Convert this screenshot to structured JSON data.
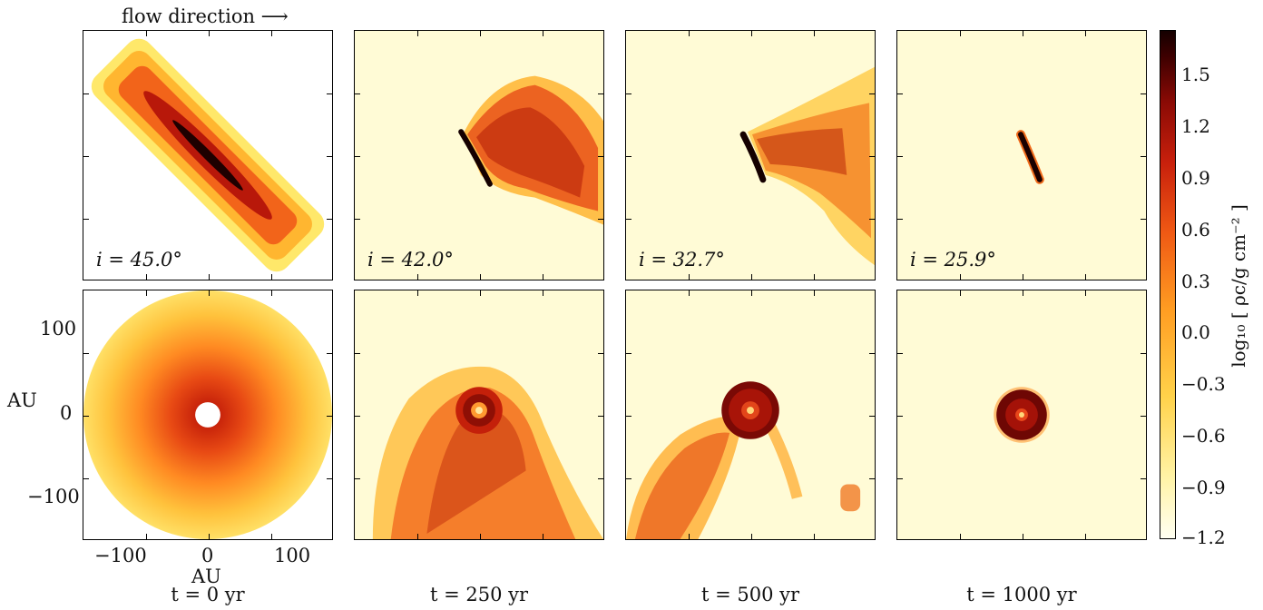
{
  "header": {
    "flow_label": "flow direction ⟶"
  },
  "panels_top": [
    {
      "inclination": "i = 45.0°"
    },
    {
      "inclination": "i = 42.0°"
    },
    {
      "inclination": "i = 32.7°"
    },
    {
      "inclination": "i = 25.9°"
    }
  ],
  "times": [
    "t  =  0 yr",
    "t  =  250 yr",
    "t  =  500 yr",
    "t  =  1000 yr"
  ],
  "axes": {
    "ylabel": "AU",
    "xlabel": "AU",
    "y_ticks": [
      "100",
      "0",
      "−100"
    ],
    "x_ticks": [
      "−100",
      "0",
      "100"
    ]
  },
  "colorbar": {
    "label": "log₁₀ [ ρc/g cm⁻² ]",
    "ticks": [
      "1.5",
      "1.2",
      "0.9",
      "0.6",
      "0.3",
      "0.0",
      "−0.3",
      "−0.6",
      "−0.9",
      "−1.2"
    ],
    "colormap": [
      "#fffff2",
      "#fff3a6",
      "#ffd24a",
      "#ff9d22",
      "#f05a14",
      "#c8200c",
      "#8a0a05",
      "#3d0000"
    ]
  }
}
